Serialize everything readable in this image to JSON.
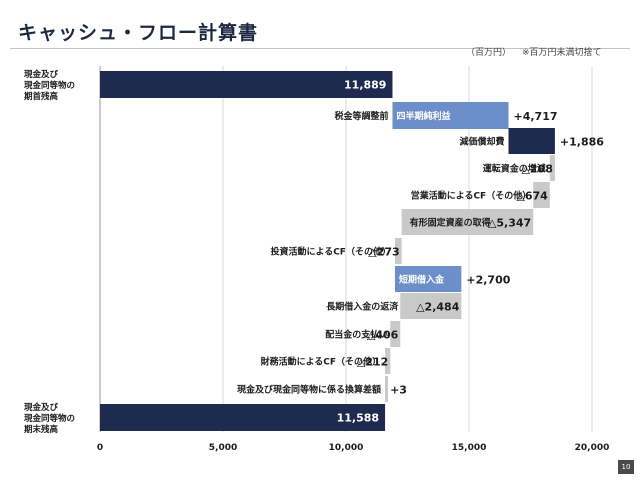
{
  "header": {
    "title": "キャッシュ・フロー計算書",
    "unit": "（百万円）",
    "note": "※百万円未満切捨て"
  },
  "page_number": "10",
  "colors": {
    "navy": "#1f2a4f",
    "blue": "#6d8fc9",
    "gray": "#c9c9c9",
    "text_dark": "#1c1c1c"
  },
  "chart_data": {
    "type": "bar",
    "title": "キャッシュ・フロー計算書",
    "xlabel": "",
    "ylabel": "",
    "xlim": [
      0,
      20000
    ],
    "xticks": [
      "0",
      "5,000",
      "10,000",
      "15,000",
      "20,000"
    ],
    "grid": true,
    "categories": [
      "現金及び 現金同等物の 期首残高",
      "税金等調整前四半期純利益",
      "減価償却費",
      "運転資金の増減",
      "営業活動によるCF（その他）",
      "有形固定資産の取得",
      "投資活動によるCF（その他）",
      "短期借入金",
      "長期借入金の返済",
      "配当金の支払い",
      "財務活動によるCF（その他）",
      "現金及び現金同等物に係る換算差額",
      "現金及び 現金同等物の 期末残高"
    ],
    "bars": [
      {
        "kind": "total",
        "label_lines": [
          "現金及び",
          "現金同等物の",
          "期首残高"
        ],
        "start": 0,
        "end": 11889,
        "value_label": "11,889",
        "color": "navy"
      },
      {
        "kind": "change",
        "label": "税金等調整前",
        "inner_label": "四半期純利益",
        "start": 11889,
        "end": 16606,
        "value_label": "+4,717",
        "color": "blue"
      },
      {
        "kind": "change",
        "label": "減価償却費",
        "start": 16606,
        "end": 18492,
        "value_label": "+1,886",
        "color": "navy"
      },
      {
        "kind": "change",
        "label": "運転資金の増減",
        "start": 18492,
        "end": 18284,
        "value_label": "△208",
        "color": "gray"
      },
      {
        "kind": "change",
        "label": "営業活動によるCF（その他）",
        "start": 18284,
        "end": 17610,
        "value_label": "△674",
        "color": "gray"
      },
      {
        "kind": "change",
        "label": "有形固定資産の取得",
        "start": 17610,
        "end": 12263,
        "value_label": "△5,347",
        "color": "gray"
      },
      {
        "kind": "change",
        "label": "投資活動によるCF（その他）",
        "start": 12263,
        "end": 11990,
        "value_label": "△273",
        "color": "gray"
      },
      {
        "kind": "change",
        "inner_label": "短期借入金",
        "start": 11990,
        "end": 14690,
        "value_label": "+2,700",
        "color": "blue"
      },
      {
        "kind": "change",
        "label": "長期借入金の返済",
        "start": 14690,
        "end": 12206,
        "value_label": "△2,484",
        "color": "gray"
      },
      {
        "kind": "change",
        "label": "配当金の支払い",
        "start": 12206,
        "end": 11800,
        "value_label": "△406",
        "color": "gray"
      },
      {
        "kind": "change",
        "label": "財務活動によるCF（その他）",
        "start": 11800,
        "end": 11588,
        "value_label": "△212",
        "color": "gray"
      },
      {
        "kind": "change",
        "label": "現金及び現金同等物に係る換算差額",
        "start": 11585,
        "end": 11588,
        "value_label": "+3",
        "color": "gray"
      },
      {
        "kind": "total",
        "label_lines": [
          "現金及び",
          "現金同等物の",
          "期末残高"
        ],
        "start": 0,
        "end": 11588,
        "value_label": "11,588",
        "color": "navy"
      }
    ]
  }
}
